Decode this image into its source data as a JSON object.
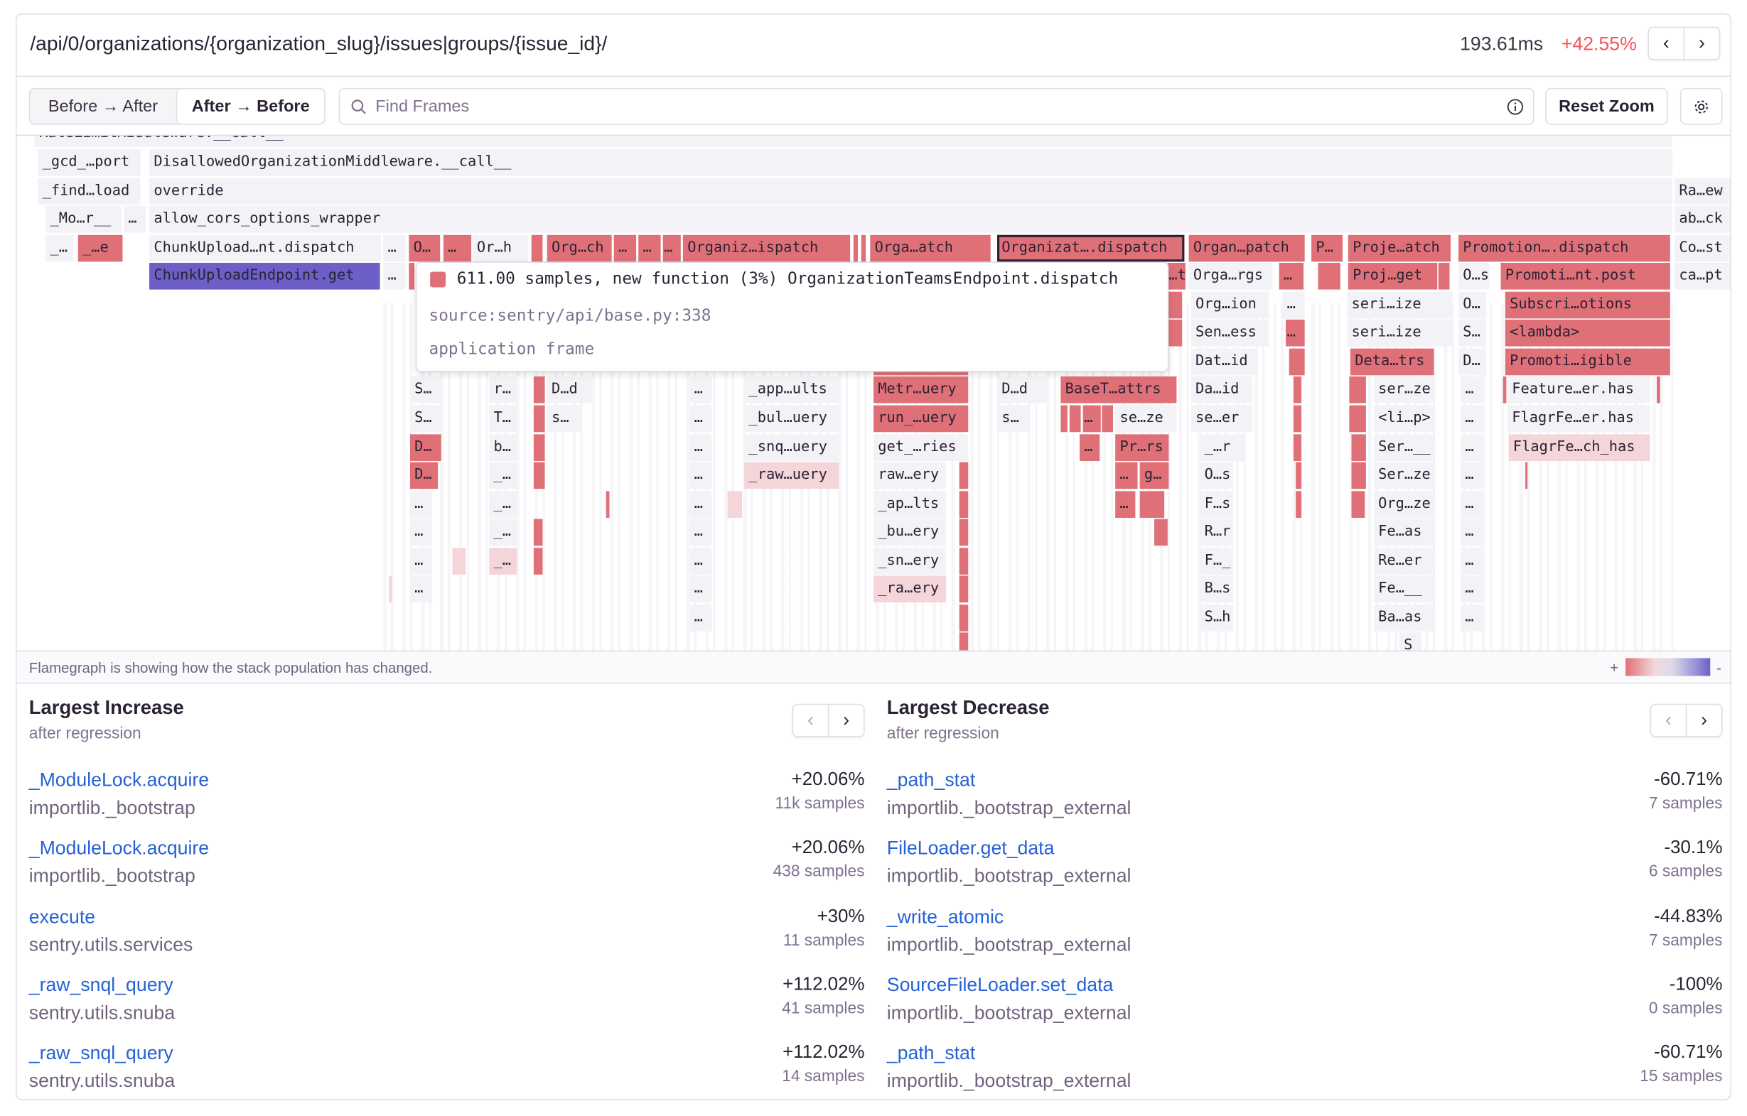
{
  "header": {
    "title": "/api/0/organizations/{organization_slug}/issues|groups/{issue_id}/",
    "duration": "193.61ms",
    "change": "+42.55%",
    "change_color": "#f55459",
    "prev_icon": "chevron-left-icon",
    "next_icon": "chevron-right-icon"
  },
  "toolbar": {
    "modes": [
      "Before → After",
      "After → Before"
    ],
    "selected_mode": "After → Before",
    "search_placeholder": "Find Frames",
    "search_value": "",
    "reset_zoom": "Reset Zoom",
    "settings_icon": "gear-icon"
  },
  "colors": {
    "increase": "#e07078",
    "light_increase": "#f4d6da",
    "neutral": "#f3f2f6",
    "selected": "#6c5fc7"
  },
  "flamegraph": {
    "frames": [
      {
        "label": "RateLimitMiddleware.__call__",
        "kind": "n"
      },
      {
        "label": "_gcd_…port",
        "kind": "n"
      },
      {
        "label": "DisallowedOrganizationMiddleware.__call__",
        "kind": "n"
      },
      {
        "label": "_find…load",
        "kind": "n"
      },
      {
        "label": "override",
        "kind": "n"
      },
      {
        "label": "Ra…ew",
        "kind": "n"
      },
      {
        "label": "_Mo…r__",
        "kind": "n"
      },
      {
        "label": "…",
        "kind": "n"
      },
      {
        "label": "allow_cors_options_wrapper",
        "kind": "n"
      },
      {
        "label": "ab…ck",
        "kind": "n"
      },
      {
        "label": "_…",
        "kind": "n"
      },
      {
        "label": "_…e",
        "kind": "inc"
      },
      {
        "label": "ChunkUpload…nt.dispatch",
        "kind": "n"
      },
      {
        "label": "…",
        "kind": "n"
      },
      {
        "label": "O…",
        "kind": "inc"
      },
      {
        "label": "…",
        "kind": "inc"
      },
      {
        "label": "Or…h",
        "kind": "n"
      },
      {
        "label": "Org…ch",
        "kind": "inc"
      },
      {
        "label": "…",
        "kind": "inc"
      },
      {
        "label": "…",
        "kind": "inc"
      },
      {
        "label": "…",
        "kind": "inc"
      },
      {
        "label": "Organiz…ispatch",
        "kind": "inc"
      },
      {
        "label": "Orga…atch",
        "kind": "inc"
      },
      {
        "label": "Organizat….dispatch",
        "kind": "hover"
      },
      {
        "label": "Organ…patch",
        "kind": "inc"
      },
      {
        "label": "P…",
        "kind": "inc"
      },
      {
        "label": "Proje…atch",
        "kind": "inc"
      },
      {
        "label": "Promotion….dispatch",
        "kind": "inc"
      },
      {
        "label": "Co…st",
        "kind": "n"
      },
      {
        "label": "ChunkUploadEndpoint.get",
        "kind": "sel"
      },
      {
        "label": "…",
        "kind": "n"
      },
      {
        "label": "…t",
        "kind": "inc"
      },
      {
        "label": "Orga…rgs",
        "kind": "n"
      },
      {
        "label": "…",
        "kind": "inc"
      },
      {
        "label": "Proj…get",
        "kind": "inc"
      },
      {
        "label": "O…s",
        "kind": "n"
      },
      {
        "label": "Promoti…nt.post",
        "kind": "inc"
      },
      {
        "label": "ca…pt",
        "kind": "n"
      },
      {
        "label": "Org…ion",
        "kind": "n"
      },
      {
        "label": "…",
        "kind": "n"
      },
      {
        "label": "seri…ize",
        "kind": "n"
      },
      {
        "label": "O…",
        "kind": "n"
      },
      {
        "label": "Subscri…otions",
        "kind": "inc"
      },
      {
        "label": "Sen…ess",
        "kind": "n"
      },
      {
        "label": "…",
        "kind": "inc"
      },
      {
        "label": "seri…ize",
        "kind": "n"
      },
      {
        "label": "S…",
        "kind": "n"
      },
      {
        "label": "<lambda>",
        "kind": "inc"
      },
      {
        "label": "Dat…id",
        "kind": "n"
      },
      {
        "label": "Deta…trs",
        "kind": "inc"
      },
      {
        "label": "D…",
        "kind": "n"
      },
      {
        "label": "Promoti…igible",
        "kind": "inc"
      },
      {
        "label": "S…",
        "kind": "n"
      },
      {
        "label": "r…",
        "kind": "n"
      },
      {
        "label": "D…d",
        "kind": "n"
      },
      {
        "label": "…",
        "kind": "n"
      },
      {
        "label": "_app…ults",
        "kind": "n"
      },
      {
        "label": "Metr…uery",
        "kind": "inc"
      },
      {
        "label": "D…d",
        "kind": "n"
      },
      {
        "label": "BaseT…attrs",
        "kind": "inc"
      },
      {
        "label": "Da…id",
        "kind": "n"
      },
      {
        "label": "ser…ze",
        "kind": "n"
      },
      {
        "label": "…",
        "kind": "n"
      },
      {
        "label": "Feature…er.has",
        "kind": "n"
      },
      {
        "label": "S…",
        "kind": "n"
      },
      {
        "label": "T…",
        "kind": "n"
      },
      {
        "label": "s…",
        "kind": "n"
      },
      {
        "label": "…",
        "kind": "n"
      },
      {
        "label": "_bul…uery",
        "kind": "n"
      },
      {
        "label": "run_…uery",
        "kind": "inc"
      },
      {
        "label": "s…",
        "kind": "n"
      },
      {
        "label": "…",
        "kind": "inc"
      },
      {
        "label": "se…ze",
        "kind": "n"
      },
      {
        "label": "se…er",
        "kind": "n"
      },
      {
        "label": "<li…p>",
        "kind": "n"
      },
      {
        "label": "…",
        "kind": "n"
      },
      {
        "label": "FlagrFe…er.has",
        "kind": "n"
      },
      {
        "label": "D…",
        "kind": "inc"
      },
      {
        "label": "b…",
        "kind": "n"
      },
      {
        "label": "…",
        "kind": "n"
      },
      {
        "label": "_snq…uery",
        "kind": "n"
      },
      {
        "label": "get_…ries",
        "kind": "n"
      },
      {
        "label": "…",
        "kind": "inc"
      },
      {
        "label": "Pr…rs",
        "kind": "inc"
      },
      {
        "label": "_…r",
        "kind": "n"
      },
      {
        "label": "Ser…__",
        "kind": "n"
      },
      {
        "label": "…",
        "kind": "n"
      },
      {
        "label": "FlagrFe…ch_has",
        "kind": "light"
      },
      {
        "label": "D…",
        "kind": "inc"
      },
      {
        "label": "_…",
        "kind": "n"
      },
      {
        "label": "…",
        "kind": "n"
      },
      {
        "label": "_raw…uery",
        "kind": "light"
      },
      {
        "label": "raw…ery",
        "kind": "n"
      },
      {
        "label": "…",
        "kind": "inc"
      },
      {
        "label": "g…",
        "kind": "inc"
      },
      {
        "label": "O…s",
        "kind": "n"
      },
      {
        "label": "Ser…ze",
        "kind": "n"
      },
      {
        "label": "…",
        "kind": "n"
      },
      {
        "label": "…",
        "kind": "n"
      },
      {
        "label": "_…",
        "kind": "n"
      },
      {
        "label": "…",
        "kind": "n"
      },
      {
        "label": "_ap…lts",
        "kind": "n"
      },
      {
        "label": "…",
        "kind": "inc"
      },
      {
        "label": "F…s",
        "kind": "n"
      },
      {
        "label": "Org…ze",
        "kind": "n"
      },
      {
        "label": "…",
        "kind": "n"
      },
      {
        "label": "…",
        "kind": "n"
      },
      {
        "label": "_…",
        "kind": "n"
      },
      {
        "label": "…",
        "kind": "n"
      },
      {
        "label": "_bu…ery",
        "kind": "n"
      },
      {
        "label": "R…r",
        "kind": "n"
      },
      {
        "label": "Fe…as",
        "kind": "n"
      },
      {
        "label": "…",
        "kind": "n"
      },
      {
        "label": "…",
        "kind": "n"
      },
      {
        "label": "_…",
        "kind": "light"
      },
      {
        "label": "…",
        "kind": "n"
      },
      {
        "label": "_sn…ery",
        "kind": "n"
      },
      {
        "label": "F…_",
        "kind": "n"
      },
      {
        "label": "Re…er",
        "kind": "n"
      },
      {
        "label": "…",
        "kind": "n"
      },
      {
        "label": "…",
        "kind": "n"
      },
      {
        "label": "…",
        "kind": "n"
      },
      {
        "label": "_ra…ery",
        "kind": "light"
      },
      {
        "label": "B…s",
        "kind": "n"
      },
      {
        "label": "Fe…__",
        "kind": "n"
      },
      {
        "label": "…",
        "kind": "n"
      },
      {
        "label": "…",
        "kind": "n"
      },
      {
        "label": "S…h",
        "kind": "n"
      },
      {
        "label": "Ba…as",
        "kind": "n"
      },
      {
        "label": "…",
        "kind": "n"
      },
      {
        "label": "S",
        "kind": "n"
      }
    ],
    "tooltip": {
      "summary": "611.00 samples, new function (3%) OrganizationTeamsEndpoint.dispatch",
      "source": "source:sentry/api/base.py:338",
      "frame_type": "application frame"
    },
    "footer_text": "Flamegraph is showing how the stack population has changed.",
    "legend_plus": "+",
    "legend_minus": "-"
  },
  "increase": {
    "title": "Largest Increase",
    "subtitle": "after regression",
    "items": [
      {
        "name": "_ModuleLock.acquire",
        "module": "importlib._bootstrap",
        "change": "+20.06%",
        "samples": "11k samples"
      },
      {
        "name": "_ModuleLock.acquire",
        "module": "importlib._bootstrap",
        "change": "+20.06%",
        "samples": "438 samples"
      },
      {
        "name": "execute",
        "module": "sentry.utils.services",
        "change": "+30%",
        "samples": "11 samples"
      },
      {
        "name": "_raw_snql_query",
        "module": "sentry.utils.snuba",
        "change": "+112.02%",
        "samples": "41 samples"
      },
      {
        "name": "_raw_snql_query",
        "module": "sentry.utils.snuba",
        "change": "+112.02%",
        "samples": "14 samples"
      }
    ]
  },
  "decrease": {
    "title": "Largest Decrease",
    "subtitle": "after regression",
    "items": [
      {
        "name": "_path_stat",
        "module": "importlib._bootstrap_external",
        "change": "-60.71%",
        "samples": "7 samples"
      },
      {
        "name": "FileLoader.get_data",
        "module": "importlib._bootstrap_external",
        "change": "-30.1%",
        "samples": "6 samples"
      },
      {
        "name": "_write_atomic",
        "module": "importlib._bootstrap_external",
        "change": "-44.83%",
        "samples": "7 samples"
      },
      {
        "name": "SourceFileLoader.set_data",
        "module": "importlib._bootstrap_external",
        "change": "-100%",
        "samples": "0 samples"
      },
      {
        "name": "_path_stat",
        "module": "importlib._bootstrap_external",
        "change": "-60.71%",
        "samples": "15 samples"
      }
    ]
  }
}
